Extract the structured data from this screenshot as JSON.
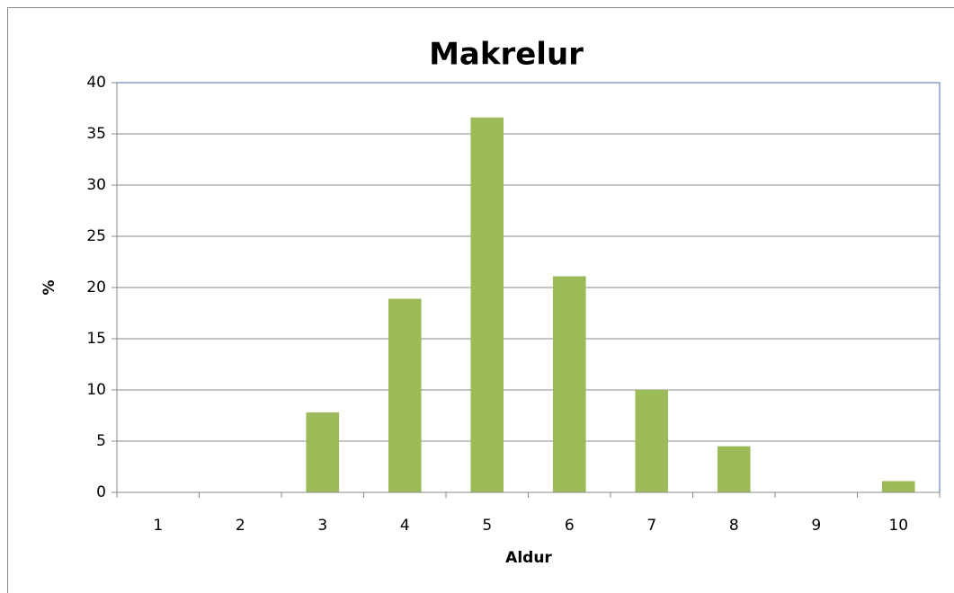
{
  "chart_data": {
    "type": "bar",
    "title": "Makrelur",
    "x_label": "Aldur",
    "y_label": "%",
    "categories": [
      "1",
      "2",
      "3",
      "4",
      "5",
      "6",
      "7",
      "8",
      "9",
      "10"
    ],
    "values": [
      0,
      0,
      7.8,
      18.9,
      36.6,
      21.1,
      10,
      4.5,
      0,
      1.1
    ],
    "color": "#9bbb59",
    "ylim": [
      0,
      40
    ],
    "yticks": [
      0,
      5,
      10,
      15,
      20,
      25,
      30,
      35,
      40
    ],
    "grid": true
  }
}
